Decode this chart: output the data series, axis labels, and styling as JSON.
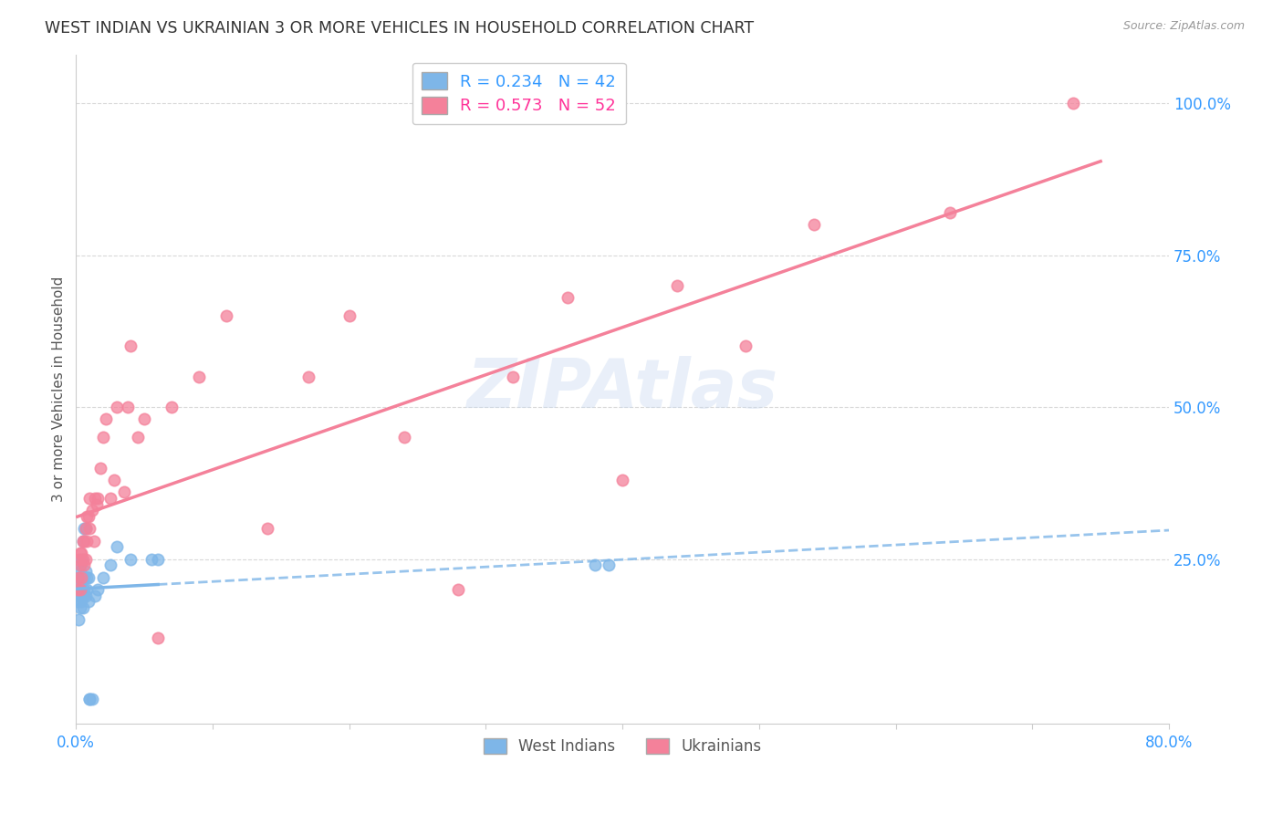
{
  "title": "WEST INDIAN VS UKRAINIAN 3 OR MORE VEHICLES IN HOUSEHOLD CORRELATION CHART",
  "source": "Source: ZipAtlas.com",
  "ylabel": "3 or more Vehicles in Household",
  "right_yticks": [
    "100.0%",
    "75.0%",
    "50.0%",
    "25.0%"
  ],
  "right_ytick_vals": [
    1.0,
    0.75,
    0.5,
    0.25
  ],
  "xlim": [
    0.0,
    0.8
  ],
  "ylim": [
    -0.02,
    1.08
  ],
  "west_indian_color": "#7EB6E8",
  "ukrainian_color": "#F4819A",
  "west_indian_R": 0.234,
  "west_indian_N": 42,
  "ukrainian_R": 0.573,
  "ukrainian_N": 52,
  "watermark": "ZIPAtlas",
  "background_color": "#ffffff",
  "grid_color": "#d8d8d8",
  "west_indian_scatter_x": [
    0.001,
    0.001,
    0.002,
    0.002,
    0.002,
    0.002,
    0.003,
    0.003,
    0.003,
    0.003,
    0.003,
    0.004,
    0.004,
    0.004,
    0.004,
    0.005,
    0.005,
    0.005,
    0.005,
    0.006,
    0.006,
    0.006,
    0.007,
    0.007,
    0.007,
    0.008,
    0.008,
    0.009,
    0.009,
    0.01,
    0.01,
    0.012,
    0.014,
    0.016,
    0.02,
    0.025,
    0.03,
    0.04,
    0.055,
    0.06,
    0.38,
    0.39
  ],
  "west_indian_scatter_y": [
    0.18,
    0.2,
    0.15,
    0.19,
    0.21,
    0.22,
    0.17,
    0.2,
    0.22,
    0.23,
    0.24,
    0.18,
    0.2,
    0.22,
    0.25,
    0.17,
    0.19,
    0.22,
    0.28,
    0.2,
    0.22,
    0.3,
    0.19,
    0.23,
    0.3,
    0.2,
    0.22,
    0.18,
    0.22,
    0.02,
    0.02,
    0.02,
    0.19,
    0.2,
    0.22,
    0.24,
    0.27,
    0.25,
    0.25,
    0.25,
    0.24,
    0.24
  ],
  "ukrainian_scatter_x": [
    0.001,
    0.002,
    0.002,
    0.003,
    0.003,
    0.003,
    0.004,
    0.004,
    0.005,
    0.005,
    0.006,
    0.006,
    0.007,
    0.007,
    0.008,
    0.008,
    0.009,
    0.01,
    0.01,
    0.012,
    0.013,
    0.014,
    0.015,
    0.016,
    0.018,
    0.02,
    0.022,
    0.025,
    0.028,
    0.03,
    0.035,
    0.038,
    0.04,
    0.045,
    0.05,
    0.06,
    0.07,
    0.09,
    0.11,
    0.14,
    0.17,
    0.2,
    0.24,
    0.28,
    0.32,
    0.36,
    0.4,
    0.44,
    0.49,
    0.54,
    0.64,
    0.73
  ],
  "ukrainian_scatter_y": [
    0.2,
    0.22,
    0.25,
    0.2,
    0.24,
    0.26,
    0.22,
    0.26,
    0.25,
    0.28,
    0.24,
    0.28,
    0.25,
    0.3,
    0.28,
    0.32,
    0.32,
    0.3,
    0.35,
    0.33,
    0.28,
    0.35,
    0.34,
    0.35,
    0.4,
    0.45,
    0.48,
    0.35,
    0.38,
    0.5,
    0.36,
    0.5,
    0.6,
    0.45,
    0.48,
    0.12,
    0.5,
    0.55,
    0.65,
    0.3,
    0.55,
    0.65,
    0.45,
    0.2,
    0.55,
    0.68,
    0.38,
    0.7,
    0.6,
    0.8,
    0.82,
    1.0
  ],
  "wi_line_x_start": 0.001,
  "wi_line_x_solid_end": 0.06,
  "wi_line_x_dash_end": 0.8,
  "uk_line_x_start": 0.001,
  "uk_line_x_end": 0.75
}
